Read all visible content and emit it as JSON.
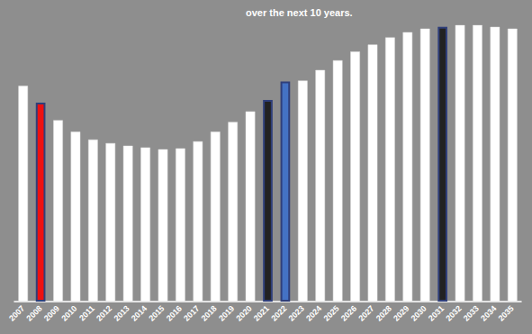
{
  "chart_data": {
    "type": "bar",
    "annotation": "over the next 10 years.",
    "categories": [
      "2007",
      "2008",
      "2009",
      "2010",
      "2011",
      "2012",
      "2013",
      "2014",
      "2015",
      "2016",
      "2017",
      "2018",
      "2019",
      "2020",
      "2021",
      "2022",
      "2023",
      "2024",
      "2025",
      "2026",
      "2027",
      "2028",
      "2029",
      "2030",
      "2031",
      "2032",
      "2033",
      "2034",
      "2035"
    ],
    "values": [
      245,
      226,
      206,
      193,
      184,
      180,
      177,
      175,
      173,
      174,
      182,
      193,
      204,
      216,
      229,
      250,
      251,
      263,
      274,
      284,
      292,
      300,
      306,
      310,
      312,
      314,
      314,
      312,
      310
    ],
    "colors": [
      "#ffffff",
      "#ee1111",
      "#ffffff",
      "#ffffff",
      "#ffffff",
      "#ffffff",
      "#ffffff",
      "#ffffff",
      "#ffffff",
      "#ffffff",
      "#ffffff",
      "#ffffff",
      "#ffffff",
      "#ffffff",
      "#222222",
      "#4472c4",
      "#ffffff",
      "#ffffff",
      "#ffffff",
      "#ffffff",
      "#ffffff",
      "#ffffff",
      "#ffffff",
      "#ffffff",
      "#222222",
      "#ffffff",
      "#ffffff",
      "#ffffff",
      "#ffffff"
    ],
    "ylim": [
      0,
      320
    ],
    "grid": false,
    "tick_labels": "x"
  }
}
